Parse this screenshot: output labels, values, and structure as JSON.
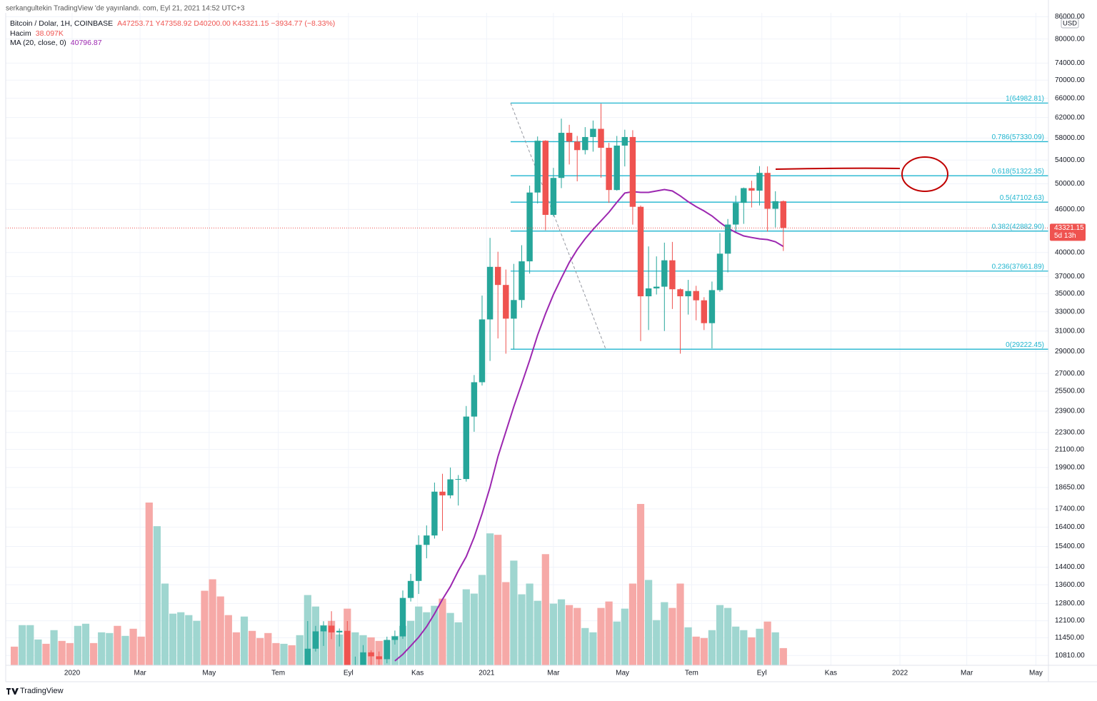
{
  "chart_data": {
    "type": "candlestick",
    "header": "serkangultekin TradingView 'de yayınlandı. com, Eyl 21, 2021 14:52 UTC+3",
    "title": "Bitcoin / Dolar, 1H, COINBASE",
    "ohlc_label": "A47253.71 Y47358.92 D40200.00 K43321.15 −3934.77 (−8.33%)",
    "x": [
      0,
      1,
      2,
      3,
      4,
      5,
      6,
      7,
      8,
      9,
      10,
      11,
      12,
      13,
      14,
      15,
      16,
      17,
      18,
      19,
      20,
      21,
      22,
      23,
      24,
      25,
      26,
      27,
      28,
      29,
      30,
      31,
      32,
      33,
      34,
      35,
      36,
      37,
      38,
      39,
      40,
      41,
      42,
      43,
      44,
      45,
      46,
      47,
      48,
      49,
      50,
      51,
      52,
      53,
      54,
      55,
      56,
      57,
      58,
      59,
      60,
      61,
      62,
      63,
      64,
      65,
      66,
      67,
      68,
      69,
      70,
      71,
      72,
      73,
      74,
      75,
      76,
      77,
      78,
      79,
      80,
      81,
      82,
      83,
      84,
      85,
      86,
      87,
      88,
      89,
      90,
      91,
      92,
      93,
      94,
      95,
      96,
      97
    ],
    "open": [
      null,
      null,
      null,
      null,
      null,
      null,
      null,
      null,
      null,
      null,
      null,
      null,
      null,
      null,
      null,
      null,
      null,
      null,
      null,
      null,
      null,
      null,
      null,
      null,
      null,
      null,
      null,
      null,
      null,
      null,
      null,
      null,
      null,
      null,
      null,
      null,
      null,
      9930,
      11050,
      11690,
      11910,
      11650,
      11710,
      10260,
      10330,
      10920,
      10780,
      10680,
      11370,
      11500,
      13030,
      13770,
      15480,
      15960,
      18400,
      18180,
      19150,
      19170,
      23480,
      26250,
      32190,
      38180,
      36000,
      32270,
      34280,
      38870,
      48600,
      57500,
      45200,
      50960,
      59000,
      57350,
      55780,
      58200,
      59770,
      56200,
      49000,
      56600,
      58200,
      46400,
      34700,
      35600,
      35800,
      39000,
      35500,
      34700,
      35300,
      34250,
      31800,
      35400,
      39850,
      43800,
      47000,
      49300,
      48900,
      51800,
      46100,
      47253.71
    ],
    "high": [
      null,
      null,
      null,
      null,
      null,
      null,
      null,
      null,
      null,
      null,
      null,
      null,
      null,
      null,
      null,
      null,
      null,
      null,
      null,
      null,
      null,
      null,
      null,
      null,
      null,
      null,
      null,
      null,
      null,
      null,
      null,
      null,
      null,
      null,
      null,
      null,
      null,
      12090,
      11900,
      12080,
      12480,
      11800,
      12090,
      10770,
      11180,
      10990,
      10950,
      11490,
      11720,
      13350,
      14090,
      15970,
      16490,
      18950,
      19500,
      19900,
      19420,
      24300,
      26870,
      34780,
      41950,
      40100,
      37850,
      38550,
      40960,
      49700,
      58300,
      57600,
      52650,
      61780,
      60550,
      58400,
      60100,
      61400,
      64850,
      57100,
      58400,
      59600,
      59500,
      46600,
      40800,
      39500,
      41300,
      41400,
      35600,
      36600,
      35900,
      34600,
      36400,
      42600,
      44600,
      48100,
      49400,
      50500,
      52950,
      52900,
      48800,
      47358.92
    ],
    "low": [
      null,
      null,
      null,
      null,
      null,
      null,
      null,
      null,
      null,
      null,
      null,
      null,
      null,
      null,
      null,
      null,
      null,
      null,
      null,
      null,
      null,
      null,
      null,
      null,
      null,
      null,
      null,
      null,
      null,
      null,
      null,
      null,
      null,
      null,
      null,
      null,
      null,
      9880,
      10950,
      11150,
      11400,
      11130,
      9880,
      9880,
      10210,
      10130,
      10380,
      10540,
      11200,
      11410,
      12880,
      13200,
      14820,
      15800,
      16200,
      18000,
      17590,
      19010,
      22350,
      25970,
      28130,
      30260,
      28800,
      29200,
      33420,
      37350,
      46900,
      43000,
      44950,
      49300,
      53240,
      50400,
      55000,
      55500,
      51000,
      47000,
      48900,
      52900,
      43800,
      30000,
      31100,
      34900,
      31000,
      33300,
      28800,
      32700,
      32100,
      31100,
      29300,
      35200,
      37500,
      42800,
      43900,
      46300,
      46600,
      42800,
      43400,
      40200
    ],
    "close": [
      null,
      null,
      null,
      null,
      null,
      null,
      null,
      null,
      null,
      null,
      null,
      null,
      null,
      null,
      null,
      null,
      null,
      null,
      null,
      null,
      null,
      null,
      null,
      null,
      null,
      null,
      null,
      null,
      null,
      null,
      null,
      null,
      null,
      null,
      null,
      null,
      null,
      11050,
      11690,
      11910,
      11650,
      11710,
      10260,
      10330,
      10920,
      10780,
      10680,
      11370,
      11500,
      13030,
      13770,
      15480,
      15960,
      18400,
      18180,
      19150,
      19170,
      23480,
      26250,
      32190,
      38180,
      36000,
      32270,
      34280,
      38870,
      48600,
      57500,
      45200,
      50960,
      59000,
      57350,
      55780,
      58200,
      59770,
      56200,
      49000,
      56600,
      58200,
      46400,
      34700,
      35600,
      35800,
      39000,
      35500,
      34700,
      35300,
      34250,
      31800,
      35400,
      39850,
      43800,
      47000,
      49300,
      48900,
      51800,
      46100,
      47250,
      43321.15
    ],
    "up_color": "#26a69a",
    "down_color": "#ef5350",
    "volume": {
      "name": "Hacim",
      "value_label": "38.097K",
      "up_color": "#9fd6d0",
      "down_color": "#f6a9a7",
      "values": [
        41300,
        88900,
        88900,
        57100,
        47600,
        77800,
        54000,
        49200,
        87300,
        92000,
        49200,
        73000,
        71400,
        87300,
        65100,
        80900,
        63500,
        360200,
        307900,
        180900,
        114300,
        117400,
        111100,
        98400,
        165000,
        190400,
        152400,
        111100,
        73000,
        107900,
        76200,
        60300,
        71400,
        49200,
        47600,
        44400,
        66700,
        155500,
        130100,
        88900,
        98400,
        68200,
        125400,
        73000,
        66700,
        61900,
        54000,
        55500,
        65100,
        87300,
        98400,
        130100,
        117400,
        131700,
        147600,
        115900,
        95200,
        168200,
        158700,
        200000,
        292000,
        288800,
        184100,
        231700,
        157100,
        180900,
        142800,
        246000,
        136500,
        146000,
        133300,
        127000,
        82500,
        73000,
        127000,
        141200,
        96800,
        125400,
        180900,
        357100,
        188900,
        100000,
        139700,
        127000,
        180900,
        84100,
        63500,
        60300,
        77800,
        133300,
        127000,
        85700,
        77800,
        61900,
        80900,
        96800,
        73000,
        38097
      ],
      "up": [
        false,
        true,
        true,
        true,
        false,
        true,
        false,
        false,
        true,
        true,
        false,
        true,
        true,
        false,
        true,
        false,
        false,
        false,
        true,
        true,
        true,
        true,
        true,
        true,
        false,
        false,
        false,
        false,
        false,
        true,
        false,
        false,
        false,
        false,
        true,
        false,
        true,
        true,
        true,
        true,
        false,
        true,
        false,
        true,
        true,
        false,
        false,
        true,
        true,
        true,
        true,
        true,
        true,
        true,
        false,
        true,
        true,
        true,
        true,
        true,
        true,
        false,
        false,
        true,
        true,
        true,
        true,
        false,
        true,
        true,
        false,
        false,
        true,
        true,
        false,
        false,
        true,
        true,
        false,
        false,
        true,
        true,
        true,
        false,
        false,
        true,
        false,
        false,
        true,
        true,
        true,
        true,
        true,
        false,
        true,
        false,
        true,
        false
      ]
    },
    "ma": {
      "name": "MA (20, close, 0)",
      "value_label": "40796.87",
      "color": "#9c27b0",
      "values": [
        null,
        null,
        null,
        null,
        null,
        null,
        null,
        null,
        null,
        null,
        null,
        null,
        null,
        null,
        null,
        null,
        null,
        null,
        null,
        null,
        null,
        null,
        null,
        null,
        null,
        null,
        null,
        null,
        null,
        null,
        null,
        null,
        null,
        null,
        null,
        null,
        null,
        null,
        null,
        null,
        null,
        null,
        null,
        null,
        null,
        null,
        null,
        null,
        10620,
        10850,
        11150,
        11470,
        11870,
        12380,
        12970,
        13520,
        14230,
        14900,
        15870,
        17130,
        18660,
        20620,
        22360,
        24250,
        26120,
        28190,
        30580,
        32790,
        34900,
        36810,
        38740,
        40390,
        41820,
        43110,
        44330,
        45580,
        47080,
        48520,
        48740,
        48630,
        48630,
        48850,
        49080,
        48850,
        48070,
        47180,
        46420,
        45780,
        45040,
        44110,
        43290,
        42700,
        42210,
        42000,
        41810,
        41710,
        41420,
        40796.87
      ]
    },
    "log_scale": true,
    "grid": true,
    "currency": "USD",
    "xlim": [
      -1.09,
      130.44
    ],
    "xticks": [
      {
        "value": 7.29,
        "label": "2020"
      },
      {
        "value": 15.86,
        "label": "Mar"
      },
      {
        "value": 24.57,
        "label": "May"
      },
      {
        "value": 33.29,
        "label": "Tem"
      },
      {
        "value": 42.14,
        "label": "Eyl"
      },
      {
        "value": 50.86,
        "label": "Kas"
      },
      {
        "value": 59.57,
        "label": "2021"
      },
      {
        "value": 68.0,
        "label": "Mar"
      },
      {
        "value": 76.71,
        "label": "May"
      },
      {
        "value": 85.43,
        "label": "Tem"
      },
      {
        "value": 94.29,
        "label": "Eyl"
      },
      {
        "value": 103.0,
        "label": "Kas"
      },
      {
        "value": 111.71,
        "label": "2022"
      },
      {
        "value": 120.14,
        "label": "Mar"
      },
      {
        "value": 128.86,
        "label": "May"
      }
    ],
    "ylim": [
      10470,
      87100
    ],
    "yticks": [
      {
        "value": 86000,
        "label": "86000.00"
      },
      {
        "value": 80000,
        "label": "80000.00"
      },
      {
        "value": 74000,
        "label": "74000.00"
      },
      {
        "value": 70000,
        "label": "70000.00"
      },
      {
        "value": 66000,
        "label": "66000.00"
      },
      {
        "value": 62000,
        "label": "62000.00"
      },
      {
        "value": 58000,
        "label": "58000.00"
      },
      {
        "value": 54000,
        "label": "54000.00"
      },
      {
        "value": 50000,
        "label": "50000.00"
      },
      {
        "value": 46000,
        "label": "46000.00"
      },
      {
        "value": 40000,
        "label": "40000.00"
      },
      {
        "value": 37000,
        "label": "37000.00"
      },
      {
        "value": 35000,
        "label": "35000.00"
      },
      {
        "value": 33000,
        "label": "33000.00"
      },
      {
        "value": 31000,
        "label": "31000.00"
      },
      {
        "value": 29000,
        "label": "29000.00"
      },
      {
        "value": 27000,
        "label": "27000.00"
      },
      {
        "value": 25500,
        "label": "25500.00"
      },
      {
        "value": 23900,
        "label": "23900.00"
      },
      {
        "value": 22300,
        "label": "22300.00"
      },
      {
        "value": 21100,
        "label": "21100.00"
      },
      {
        "value": 19900,
        "label": "19900.00"
      },
      {
        "value": 18650,
        "label": "18650.00"
      },
      {
        "value": 17400,
        "label": "17400.00"
      },
      {
        "value": 16400,
        "label": "16400.00"
      },
      {
        "value": 15400,
        "label": "15400.00"
      },
      {
        "value": 14400,
        "label": "14400.00"
      },
      {
        "value": 13600,
        "label": "13600.00"
      },
      {
        "value": 12800,
        "label": "12800.00"
      },
      {
        "value": 12100,
        "label": "12100.00"
      },
      {
        "value": 11450,
        "label": "11450.00"
      },
      {
        "value": 10810,
        "label": "10810.00"
      }
    ],
    "last_price": {
      "value": 43321.15,
      "label": "43321.15",
      "countdown": "5d 13h",
      "color": "#ef5350"
    },
    "fib": {
      "color": "#1fb5cf",
      "from_x": 62.6,
      "to_x": 74.6,
      "levels": [
        {
          "price": 64982.81,
          "label": "1(64982.81)"
        },
        {
          "price": 57330.09,
          "label": "0.786(57330.09)"
        },
        {
          "price": 51322.35,
          "label": "0.618(51322.35)"
        },
        {
          "price": 47102.63,
          "label": "0.5(47102.63)"
        },
        {
          "price": 42882.9,
          "label": "0.382(42882.90)"
        },
        {
          "price": 37661.89,
          "label": "0.236(37661.89)"
        },
        {
          "price": 29222.45,
          "label": "0(29222.45)"
        }
      ]
    },
    "footer": "TradingView"
  }
}
